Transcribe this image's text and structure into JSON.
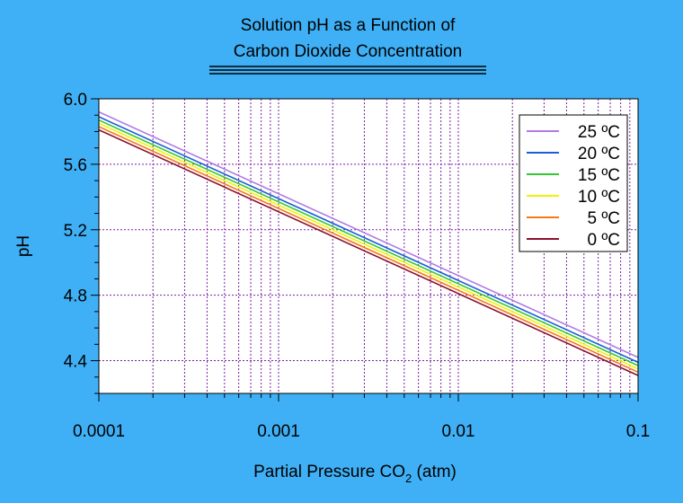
{
  "colors": {
    "background": "#3fb0f5",
    "plot_background": "#ffffff",
    "grid": "#7a1fa0"
  },
  "chart_data": {
    "type": "line",
    "title_lines": [
      "Solution pH as a Function of",
      "Carbon Dioxide Concentration"
    ],
    "xlabel_main": "Partial Pressure CO",
    "xlabel_sub": "2",
    "xlabel_tail": " (atm)",
    "ylabel": "pH",
    "x_scale": "log",
    "xlim": [
      0.0001,
      0.1
    ],
    "ylim": [
      4.2,
      6.0
    ],
    "x_ticks": [
      {
        "value": 0.0001,
        "label": "0.0001"
      },
      {
        "value": 0.001,
        "label": "0.001"
      },
      {
        "value": 0.01,
        "label": "0.01"
      },
      {
        "value": 0.1,
        "label": "0.1"
      }
    ],
    "y_ticks": [
      {
        "value": 4.4,
        "label": "4.4"
      },
      {
        "value": 4.8,
        "label": "4.8"
      },
      {
        "value": 5.2,
        "label": "5.2"
      },
      {
        "value": 5.6,
        "label": "5.6"
      },
      {
        "value": 6.0,
        "label": "6.0"
      }
    ],
    "grid": true,
    "legend_position": "top-right",
    "series": [
      {
        "name": "25 ºC",
        "color": "#b07ae6",
        "x": [
          0.0001,
          0.1
        ],
        "y": [
          5.92,
          4.42
        ]
      },
      {
        "name": "20 ºC",
        "color": "#1a5fd6",
        "x": [
          0.0001,
          0.1
        ],
        "y": [
          5.89,
          4.39
        ]
      },
      {
        "name": "15 ºC",
        "color": "#33c833",
        "x": [
          0.0001,
          0.1
        ],
        "y": [
          5.87,
          4.37
        ]
      },
      {
        "name": "10 ºC",
        "color": "#f2f200",
        "x": [
          0.0001,
          0.1
        ],
        "y": [
          5.85,
          4.35
        ]
      },
      {
        "name": "5 ºC",
        "color": "#f27a18",
        "x": [
          0.0001,
          0.1
        ],
        "y": [
          5.83,
          4.33
        ]
      },
      {
        "name": "0 ºC",
        "color": "#8c1030",
        "x": [
          0.0001,
          0.1
        ],
        "y": [
          5.81,
          4.31
        ]
      }
    ]
  }
}
